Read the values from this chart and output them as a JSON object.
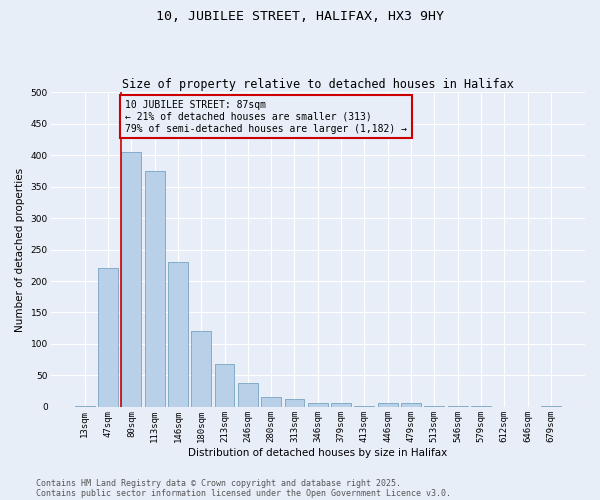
{
  "title1": "10, JUBILEE STREET, HALIFAX, HX3 9HY",
  "title2": "Size of property relative to detached houses in Halifax",
  "xlabel": "Distribution of detached houses by size in Halifax",
  "ylabel": "Number of detached properties",
  "bar_labels": [
    "13sqm",
    "47sqm",
    "80sqm",
    "113sqm",
    "146sqm",
    "180sqm",
    "213sqm",
    "246sqm",
    "280sqm",
    "313sqm",
    "346sqm",
    "379sqm",
    "413sqm",
    "446sqm",
    "479sqm",
    "513sqm",
    "546sqm",
    "579sqm",
    "612sqm",
    "646sqm",
    "679sqm"
  ],
  "bar_values": [
    2,
    220,
    405,
    375,
    230,
    120,
    68,
    38,
    16,
    13,
    6,
    6,
    1,
    6,
    6,
    1,
    1,
    1,
    0,
    0,
    2
  ],
  "bar_color": "#b8d0e8",
  "bar_edgecolor": "#6699bb",
  "vline_x_index": 2,
  "vline_color": "#cc0000",
  "annotation_text": "10 JUBILEE STREET: 87sqm\n← 21% of detached houses are smaller (313)\n79% of semi-detached houses are larger (1,182) →",
  "annotation_box_color": "#cc0000",
  "ylim": [
    0,
    500
  ],
  "yticks": [
    0,
    50,
    100,
    150,
    200,
    250,
    300,
    350,
    400,
    450,
    500
  ],
  "footnote1": "Contains HM Land Registry data © Crown copyright and database right 2025.",
  "footnote2": "Contains public sector information licensed under the Open Government Licence v3.0.",
  "bg_color": "#e8eef8",
  "plot_bg_color": "#e8eef8",
  "grid_color": "#ffffff",
  "title1_fontsize": 9.5,
  "title2_fontsize": 8.5,
  "tick_fontsize": 6.5,
  "label_fontsize": 7.5,
  "annotation_fontsize": 7,
  "footnote_fontsize": 6
}
